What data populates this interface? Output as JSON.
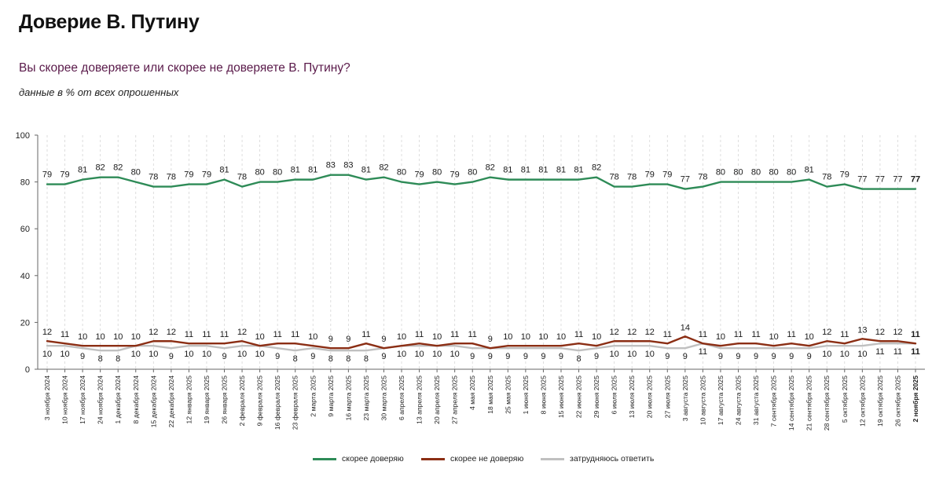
{
  "header": {
    "title": "Доверие В. Путину",
    "question": "Вы скорее доверяете или скорее не доверяете В. Путину?",
    "note": "данные в % от всех опрошенных"
  },
  "colors": {
    "trust": "#2e8b57",
    "distrust": "#8b2e14",
    "undecided": "#c0c0c0",
    "title_purple": "#5a1a4a"
  },
  "chart_data": {
    "type": "line",
    "title": "Доверие В. Путину",
    "subtitle": "Вы скорее доверяете или скорее не доверяете В. Путину?",
    "ylim": [
      0,
      100
    ],
    "yticks": [
      0,
      20,
      40,
      60,
      80,
      100
    ],
    "grid": "vertical dashed",
    "legend_position": "bottom-center",
    "categories": [
      "3 ноября 2024",
      "10 ноября 2024",
      "17 ноября 2024",
      "24 ноября 2024",
      "1 декабря 2024",
      "8 декабря 2024",
      "15 декабря 2024",
      "22 декабря 2024",
      "12 января 2025",
      "19 января 2025",
      "26 января 2025",
      "2 февраля 2025",
      "9 февраля 2025",
      "16 февраля 2025",
      "23 февраля 2025",
      "2 марта 2025",
      "9 марта 2025",
      "16 марта 2025",
      "23 марта 2025",
      "30 марта 2025",
      "6 апреля 2025",
      "13 апреля 2025",
      "20 апреля 2025",
      "27 апреля 2025",
      "4 мая 2025",
      "18 мая 2025",
      "25 мая 2025",
      "1 июня 2025",
      "8 июня 2025",
      "15 июня 2025",
      "22 июня 2025",
      "29 июня 2025",
      "6 июля 2025",
      "13 июля 2025",
      "20 июля 2025",
      "27 июля 2025",
      "3 августа 2025",
      "10 августа 2025",
      "17 августа 2025",
      "24 августа 2025",
      "31 августа 2025",
      "7 сентября 2025",
      "14 сентября 2025",
      "21 сентября 2025",
      "28 сентября 2025",
      "5 октября 2025",
      "12 октября 2025",
      "19 октября 2025",
      "26 октября 2025",
      "2 ноября 2025"
    ],
    "series": [
      {
        "name": "скорее доверяю",
        "color": "#2e8b57",
        "values": [
          79,
          79,
          81,
          82,
          82,
          80,
          78,
          78,
          79,
          79,
          81,
          78,
          80,
          80,
          81,
          81,
          83,
          83,
          81,
          82,
          80,
          79,
          80,
          79,
          80,
          82,
          81,
          81,
          81,
          81,
          81,
          82,
          78,
          78,
          79,
          79,
          77,
          78,
          80,
          80,
          80,
          80,
          80,
          81,
          78,
          79,
          77,
          77,
          77,
          77
        ]
      },
      {
        "name": "скорее не доверяю",
        "color": "#8b2e14",
        "values": [
          12,
          11,
          10,
          10,
          10,
          10,
          12,
          12,
          11,
          11,
          11,
          12,
          10,
          11,
          11,
          10,
          9,
          9,
          11,
          9,
          10,
          11,
          10,
          11,
          11,
          9,
          10,
          10,
          10,
          10,
          11,
          10,
          12,
          12,
          12,
          11,
          14,
          11,
          10,
          11,
          11,
          10,
          11,
          10,
          12,
          11,
          13,
          12,
          12,
          11
        ]
      },
      {
        "name": "затрудняюсь ответить",
        "color": "#c0c0c0",
        "values": [
          10,
          10,
          9,
          8,
          8,
          10,
          10,
          9,
          10,
          10,
          9,
          10,
          10,
          9,
          8,
          9,
          8,
          8,
          8,
          9,
          10,
          10,
          10,
          10,
          9,
          9,
          9,
          9,
          9,
          9,
          8,
          9,
          10,
          10,
          10,
          9,
          9,
          11,
          9,
          9,
          9,
          9,
          9,
          9,
          10,
          10,
          10,
          11,
          11,
          11
        ]
      }
    ]
  },
  "legend": {
    "items": [
      {
        "label": "скорее доверяю",
        "color": "#2e8b57"
      },
      {
        "label": "скорее не доверяю",
        "color": "#8b2e14"
      },
      {
        "label": "затрудняюсь ответить",
        "color": "#c0c0c0"
      }
    ]
  }
}
